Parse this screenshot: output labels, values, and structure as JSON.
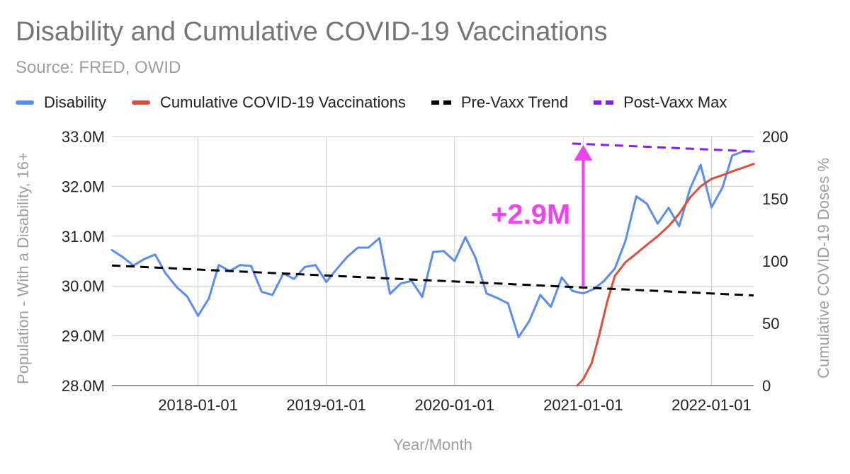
{
  "colors": {
    "disability": "#5b8def",
    "vaccinations": "#db4f3f",
    "pre_vaxx_trend": "#000000",
    "post_vaxx_max": "#8a1df5",
    "annotation": "#ee44ee",
    "grid": "#cccccc",
    "axis_title": "#9e9e9e"
  },
  "chart_data": {
    "type": "line",
    "title": "Disability and Cumulative COVID-19 Vaccinations",
    "subtitle": "Source: FRED, OWID",
    "xlabel": "Year/Month",
    "ylabel": "Population - With a Disability, 16+",
    "y2label": "Cumulative COVID-19 Doses %",
    "x_range": [
      "2017-05-01",
      "2022-05-01"
    ],
    "xticks": [
      {
        "date": "2018-01-01",
        "label": "2018-01-01"
      },
      {
        "date": "2019-01-01",
        "label": "2019-01-01"
      },
      {
        "date": "2020-01-01",
        "label": "2020-01-01"
      },
      {
        "date": "2021-01-01",
        "label": "2021-01-01"
      },
      {
        "date": "2022-01-01",
        "label": "2022-01-01"
      }
    ],
    "ylim": [
      28.0,
      33.0
    ],
    "yticks": [
      {
        "value": 28.0,
        "label": "28.0M"
      },
      {
        "value": 29.0,
        "label": "29.0M"
      },
      {
        "value": 30.0,
        "label": "30.0M"
      },
      {
        "value": 31.0,
        "label": "31.0M"
      },
      {
        "value": 32.0,
        "label": "32.0M"
      },
      {
        "value": 33.0,
        "label": "33.0M"
      }
    ],
    "y2lim": [
      0,
      200
    ],
    "y2ticks": [
      {
        "value": 0,
        "label": "0"
      },
      {
        "value": 50,
        "label": "50"
      },
      {
        "value": 100,
        "label": "100"
      },
      {
        "value": 150,
        "label": "150"
      },
      {
        "value": 200,
        "label": "200"
      }
    ],
    "legend_position": "top",
    "series": [
      {
        "name": "Disability",
        "axis": "left",
        "points": [
          [
            "2017-05-01",
            30.72
          ],
          [
            "2017-06-01",
            30.58
          ],
          [
            "2017-07-01",
            30.41
          ],
          [
            "2017-08-01",
            30.54
          ],
          [
            "2017-09-01",
            30.63
          ],
          [
            "2017-10-01",
            30.25
          ],
          [
            "2017-11-01",
            29.98
          ],
          [
            "2017-12-01",
            29.79
          ],
          [
            "2018-01-01",
            29.4
          ],
          [
            "2018-02-01",
            29.75
          ],
          [
            "2018-03-01",
            30.42
          ],
          [
            "2018-04-01",
            30.3
          ],
          [
            "2018-05-01",
            30.42
          ],
          [
            "2018-06-01",
            30.4
          ],
          [
            "2018-07-01",
            29.88
          ],
          [
            "2018-08-01",
            29.82
          ],
          [
            "2018-09-01",
            30.25
          ],
          [
            "2018-10-01",
            30.14
          ],
          [
            "2018-11-01",
            30.38
          ],
          [
            "2018-12-01",
            30.42
          ],
          [
            "2019-01-01",
            30.08
          ],
          [
            "2019-02-01",
            30.35
          ],
          [
            "2019-03-01",
            30.58
          ],
          [
            "2019-04-01",
            30.77
          ],
          [
            "2019-05-01",
            30.77
          ],
          [
            "2019-06-01",
            30.96
          ],
          [
            "2019-07-01",
            29.84
          ],
          [
            "2019-08-01",
            30.05
          ],
          [
            "2019-09-01",
            30.1
          ],
          [
            "2019-10-01",
            29.78
          ],
          [
            "2019-11-01",
            30.68
          ],
          [
            "2019-12-01",
            30.7
          ],
          [
            "2020-01-01",
            30.5
          ],
          [
            "2020-02-01",
            30.98
          ],
          [
            "2020-03-01",
            30.56
          ],
          [
            "2020-04-01",
            29.85
          ],
          [
            "2020-05-01",
            29.76
          ],
          [
            "2020-06-01",
            29.65
          ],
          [
            "2020-07-01",
            28.97
          ],
          [
            "2020-08-01",
            29.3
          ],
          [
            "2020-09-01",
            29.82
          ],
          [
            "2020-10-01",
            29.58
          ],
          [
            "2020-11-01",
            30.17
          ],
          [
            "2020-12-01",
            29.9
          ],
          [
            "2021-01-01",
            29.85
          ],
          [
            "2021-02-01",
            29.94
          ],
          [
            "2021-03-01",
            30.1
          ],
          [
            "2021-04-01",
            30.35
          ],
          [
            "2021-05-01",
            30.9
          ],
          [
            "2021-06-01",
            31.8
          ],
          [
            "2021-07-01",
            31.65
          ],
          [
            "2021-08-01",
            31.25
          ],
          [
            "2021-09-01",
            31.57
          ],
          [
            "2021-10-01",
            31.2
          ],
          [
            "2021-11-01",
            31.95
          ],
          [
            "2021-12-01",
            32.43
          ],
          [
            "2022-01-01",
            31.58
          ],
          [
            "2022-02-01",
            31.97
          ],
          [
            "2022-03-01",
            32.62
          ],
          [
            "2022-04-01",
            32.7
          ],
          [
            "2022-05-01",
            32.7
          ]
        ]
      },
      {
        "name": "Cumulative COVID-19 Vaccinations",
        "axis": "right",
        "points": [
          [
            "2020-12-15",
            0
          ],
          [
            "2021-01-01",
            5
          ],
          [
            "2021-01-25",
            18
          ],
          [
            "2021-02-15",
            40
          ],
          [
            "2021-03-10",
            67
          ],
          [
            "2021-04-01",
            88
          ],
          [
            "2021-05-01",
            99
          ],
          [
            "2021-06-01",
            106
          ],
          [
            "2021-07-01",
            113
          ],
          [
            "2021-08-01",
            120
          ],
          [
            "2021-09-01",
            128
          ],
          [
            "2021-10-01",
            138
          ],
          [
            "2021-11-01",
            151
          ],
          [
            "2021-12-01",
            160
          ],
          [
            "2022-01-01",
            166
          ],
          [
            "2022-02-01",
            169
          ],
          [
            "2022-03-01",
            172
          ],
          [
            "2022-04-01",
            175
          ],
          [
            "2022-05-01",
            178
          ]
        ]
      },
      {
        "name": "Pre-Vaxx Trend",
        "axis": "left",
        "style": "dashed",
        "points": [
          [
            "2017-05-01",
            30.41
          ],
          [
            "2022-05-01",
            29.81
          ]
        ]
      },
      {
        "name": "Post-Vaxx Max",
        "axis": "left",
        "style": "dashed",
        "points": [
          [
            "2020-12-01",
            32.86
          ],
          [
            "2022-05-01",
            32.7
          ]
        ]
      }
    ],
    "annotation": {
      "text": "+2.9M",
      "date": "2021-01-01",
      "from_value": 30.0,
      "to_value": 32.86
    }
  }
}
